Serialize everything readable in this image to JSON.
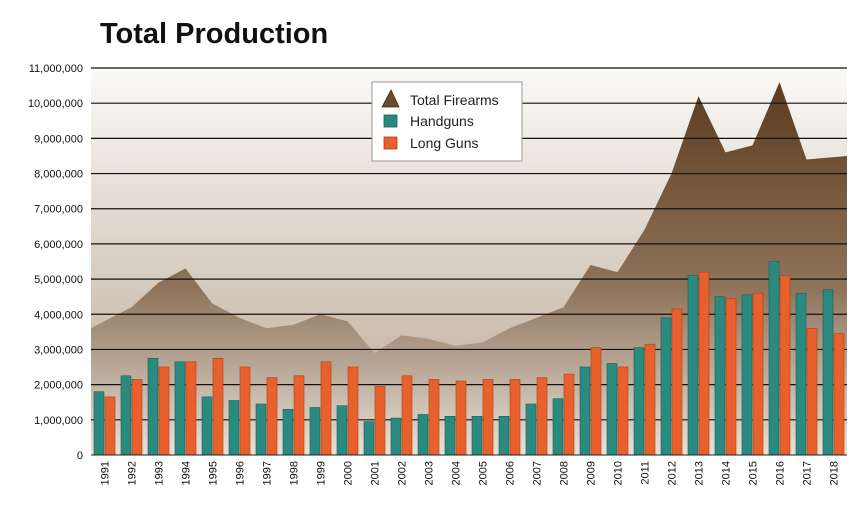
{
  "chart_data": {
    "type": "bar",
    "title": "Total Production",
    "xlabel": "",
    "ylabel": "",
    "ylim": [
      0,
      11000000
    ],
    "yticks": [
      0,
      1000000,
      2000000,
      3000000,
      4000000,
      5000000,
      6000000,
      7000000,
      8000000,
      9000000,
      10000000,
      11000000
    ],
    "ytick_labels": [
      "0",
      "1,000,000",
      "2,000,000",
      "3,000,000",
      "4,000,000",
      "5,000,000",
      "6,000,000",
      "7,000,000",
      "8,000,000",
      "9,000,000",
      "10,000,000",
      "11,000,000"
    ],
    "grid": true,
    "legend_position": "top-center",
    "categories": [
      "1991",
      "1992",
      "1993",
      "1994",
      "1995",
      "1996",
      "1997",
      "1998",
      "1999",
      "2000",
      "2001",
      "2002",
      "2003",
      "2004",
      "2005",
      "2006",
      "2007",
      "2008",
      "2009",
      "2010",
      "2011",
      "2012",
      "2013",
      "2014",
      "2015",
      "2016",
      "2017",
      "2018"
    ],
    "series": [
      {
        "name": "Total Firearms",
        "kind": "area",
        "color": "#6b4a2e",
        "values": [
          3600000,
          4200000,
          4900000,
          5300000,
          4300000,
          3900000,
          3600000,
          3700000,
          4000000,
          3800000,
          2900000,
          3400000,
          3300000,
          3100000,
          3200000,
          3600000,
          3900000,
          4200000,
          5400000,
          5200000,
          6400000,
          8000000,
          10200000,
          8600000,
          8800000,
          10600000,
          8400000,
          8500000
        ]
      },
      {
        "name": "Handguns",
        "kind": "bar",
        "color": "#2a8a80",
        "values": [
          1800000,
          2250000,
          2750000,
          2650000,
          1650000,
          1550000,
          1450000,
          1300000,
          1350000,
          1400000,
          950000,
          1050000,
          1150000,
          1100000,
          1100000,
          1100000,
          1450000,
          1600000,
          2500000,
          2600000,
          3050000,
          3900000,
          5100000,
          4500000,
          4550000,
          5500000,
          4600000,
          4700000
        ]
      },
      {
        "name": "Long Guns",
        "kind": "bar",
        "color": "#e8602c",
        "values": [
          1650000,
          2150000,
          2500000,
          2650000,
          2750000,
          2500000,
          2200000,
          2250000,
          2650000,
          2500000,
          1950000,
          2250000,
          2150000,
          2100000,
          2150000,
          2150000,
          2200000,
          2300000,
          3050000,
          2500000,
          3150000,
          4150000,
          5200000,
          4450000,
          4600000,
          5100000,
          3600000,
          3450000
        ]
      }
    ]
  }
}
